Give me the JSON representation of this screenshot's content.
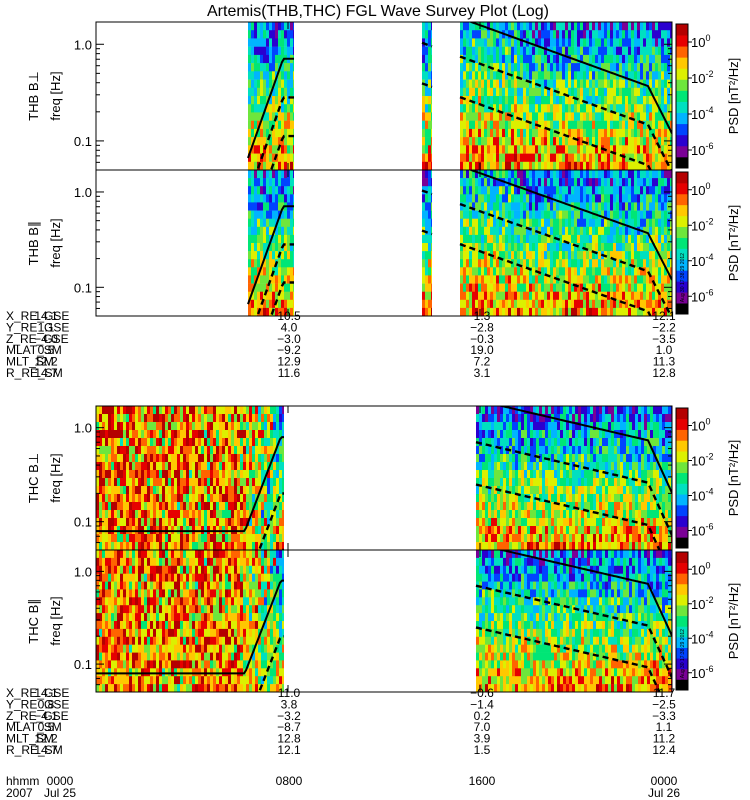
{
  "chart_data": {
    "type": "heatmap",
    "title": "Artemis(THB,THC) FGL Wave Survey Plot (Log)",
    "probes": [
      {
        "probe": "THB",
        "panels": [
          {
            "component": "B⊥",
            "probe_label": "THB B⊥",
            "ylabel": "freq [Hz]",
            "yscale": "log",
            "ylim": [
              0.05,
              1.7
            ],
            "yticks": [
              {
                "v": 1.0,
                "label": "1.0"
              },
              {
                "v": 0.1,
                "label": "0.1"
              }
            ],
            "data_intervals_hhmm": [
              [
                "0620",
                "0815"
              ],
              [
                "1335",
                "1400"
              ],
              [
                "1510",
                "2400"
              ]
            ]
          },
          {
            "component": "B∥",
            "probe_label": "THB B∥",
            "ylabel": "freq [Hz]",
            "yscale": "log",
            "ylim": [
              0.05,
              1.7
            ],
            "yticks": [
              {
                "v": 1.0,
                "label": "1.0"
              },
              {
                "v": 0.1,
                "label": "0.1"
              }
            ],
            "data_intervals_hhmm": [
              [
                "0620",
                "0815"
              ],
              [
                "1335",
                "1400"
              ],
              [
                "1510",
                "2400"
              ]
            ]
          }
        ],
        "ephemeris": [
          {
            "label": "X_RE_GSE",
            "values": [
              "14.1",
              "10.5",
              "1.3",
              "12.1"
            ]
          },
          {
            "label": "Y_RE_GSE",
            "values": [
              "1.1",
              "4.0",
              "-2.8",
              "-2.2"
            ]
          },
          {
            "label": "Z_RE_GSE",
            "values": [
              "-4.0",
              "-3.0",
              "-0.3",
              "-3.5"
            ]
          },
          {
            "label": "MLAT_SM",
            "values": [
              "0.5",
              "-9.2",
              "19.0",
              "1.0"
            ]
          },
          {
            "label": "MLT_SM",
            "values": [
              "12.2",
              "12.9",
              "7.2",
              "11.3"
            ]
          },
          {
            "label": "R_RE_SM",
            "values": [
              "14.7",
              "11.6",
              "3.1",
              "12.8"
            ]
          }
        ]
      },
      {
        "probe": "THC",
        "panels": [
          {
            "component": "B⊥",
            "probe_label": "THC B⊥",
            "ylabel": "freq [Hz]",
            "yscale": "log",
            "ylim": [
              0.05,
              1.7
            ],
            "yticks": [
              {
                "v": 1.0,
                "label": "1.0"
              },
              {
                "v": 0.1,
                "label": "0.1"
              }
            ],
            "data_intervals_hhmm": [
              [
                "0000",
                "0750"
              ],
              [
                "1550",
                "2400"
              ]
            ]
          },
          {
            "component": "B∥",
            "probe_label": "THC B∥",
            "ylabel": "freq [Hz]",
            "yscale": "log",
            "ylim": [
              0.05,
              1.7
            ],
            "yticks": [
              {
                "v": 1.0,
                "label": "1.0"
              },
              {
                "v": 0.1,
                "label": "0.1"
              }
            ],
            "data_intervals_hhmm": [
              [
                "0000",
                "0750"
              ],
              [
                "1550",
                "2400"
              ]
            ]
          }
        ],
        "ephemeris": [
          {
            "label": "X_RE_GSE",
            "values": [
              "14.1",
              "11.0",
              "-0.6",
              "11.7"
            ]
          },
          {
            "label": "Y_RE_GSE",
            "values": [
              "0.8",
              "3.8",
              "-1.4",
              "-2.5"
            ]
          },
          {
            "label": "Z_RE_GSE",
            "values": [
              "-4.1",
              "-3.2",
              "0.2",
              "-3.3"
            ]
          },
          {
            "label": "MLAT_SM",
            "values": [
              "0.5",
              "-8.7",
              "7.0",
              "1.1"
            ]
          },
          {
            "label": "MLT_SM",
            "values": [
              "12.2",
              "12.8",
              "3.9",
              "11.2"
            ]
          },
          {
            "label": "R_RE_SM",
            "values": [
              "14.7",
              "12.1",
              "1.5",
              "12.4"
            ]
          }
        ]
      }
    ],
    "x_axis": {
      "rows": [
        {
          "label": "hhmm",
          "values": [
            "0000",
            "0800",
            "1600",
            "0000"
          ]
        },
        {
          "label": "2007",
          "values": [
            "Jul 25",
            "",
            "",
            "Jul 26"
          ]
        }
      ],
      "tick_hours": [
        0,
        8,
        16,
        24
      ]
    },
    "colorbar": {
      "label": "PSD [nT²/Hz]",
      "scale": "log",
      "range": [
        1e-07,
        10
      ],
      "ticks": [
        {
          "v": 1,
          "base": "10",
          "exp": "0"
        },
        {
          "v": 0.01,
          "base": "10",
          "exp": "-2"
        },
        {
          "v": 0.0001,
          "base": "10",
          "exp": "-4"
        },
        {
          "v": 1e-06,
          "base": "10",
          "exp": "-6"
        }
      ],
      "colors": [
        "#000000",
        "#7a0096",
        "#2a00d0",
        "#0044ff",
        "#00b4ff",
        "#00e0c0",
        "#00e676",
        "#6ee63c",
        "#dcf000",
        "#ffc800",
        "#ff6400",
        "#e60000",
        "#b40000"
      ]
    },
    "overlay_lines": "gyrofrequency curves (solid) and harmonic curves (dashed), drawn in black",
    "stamp": "Thu Aug 30 17:38:29 2012"
  }
}
